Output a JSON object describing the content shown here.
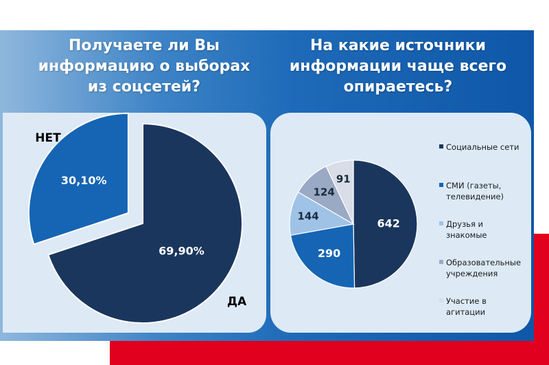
{
  "colors": {
    "red": "#e1001e",
    "dark_navy": "#1b365d",
    "mid_blue": "#1565b4",
    "light_blue": "#9fc3e7",
    "gray_blue": "#9aa9c4",
    "pale_gray": "#d8dde7"
  },
  "left": {
    "title": "Получаете ли Вы\nинформацию о выборах\nиз соцсетей?"
  },
  "right": {
    "title": "На какие источники\nинформации чаще всего\nопираетесь?"
  },
  "chart_data": [
    {
      "type": "pie",
      "categories": [
        "НЕТ",
        "ДА"
      ],
      "values": [
        30.1,
        69.9
      ],
      "value_labels": [
        "30,10%",
        "69,90%"
      ],
      "exploded": "НЕТ",
      "colors": [
        "#1565b4",
        "#1b365d"
      ]
    },
    {
      "type": "pie",
      "categories": [
        "Социальные сети",
        "СМИ (газеты, телевидение)",
        "Друзья и знакомые",
        "Образовательные учреждения",
        "Участие в агитации"
      ],
      "legend_labels": [
        "Социальные сети",
        "СМИ (газеты,\nтелевидение)",
        "Друзья и\nзнакомые",
        "Образовательные\nучреждения",
        "Участие в\nагитации"
      ],
      "values": [
        642,
        290,
        144,
        124,
        91
      ],
      "value_labels": [
        "642",
        "290",
        "144",
        "124",
        "91"
      ],
      "colors": [
        "#1b365d",
        "#1565b4",
        "#9fc3e7",
        "#9aa9c4",
        "#d8dde7"
      ],
      "legend": "right"
    }
  ]
}
